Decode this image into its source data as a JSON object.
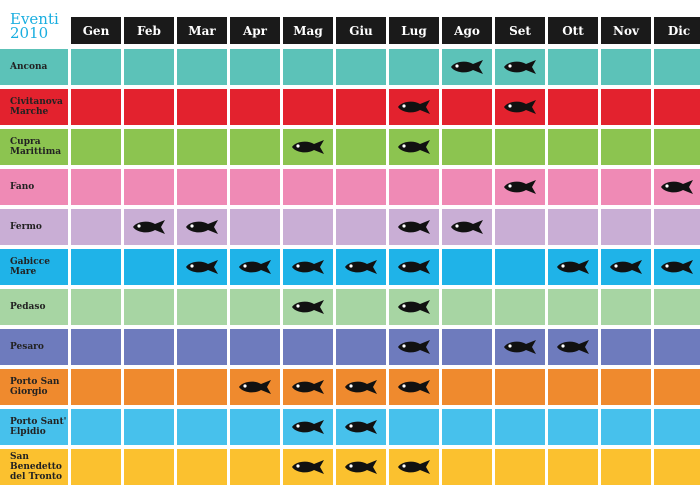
{
  "title_lines": [
    "Eventi",
    "2010"
  ],
  "months": [
    "Gen",
    "Feb",
    "Mar",
    "Apr",
    "Mag",
    "Giu",
    "Lug",
    "Ago",
    "Set",
    "Ott",
    "Nov",
    "Dic"
  ],
  "colors": {
    "title": "#19aee0",
    "header": "#1a1a1a",
    "fish": "#111111"
  },
  "rows": [
    {
      "name": "Ancona",
      "color": "#5cc2b8",
      "events": [
        8,
        9
      ]
    },
    {
      "name": "Civitanova Marche",
      "color": "#e3222e",
      "events": [
        7,
        9
      ]
    },
    {
      "name": "Cupra Marittima",
      "color": "#8cc450",
      "events": [
        5,
        7
      ]
    },
    {
      "name": "Fano",
      "color": "#ef8ab5",
      "events": [
        9,
        12
      ]
    },
    {
      "name": "Fermo",
      "color": "#c9aed5",
      "events": [
        2,
        3,
        7,
        8
      ]
    },
    {
      "name": "Gabicce Mare",
      "color": "#1fb3e8",
      "events": [
        3,
        4,
        5,
        6,
        7,
        10,
        11,
        12
      ]
    },
    {
      "name": "Pedaso",
      "color": "#a7d5a3",
      "events": [
        5,
        7
      ]
    },
    {
      "name": "Pesaro",
      "color": "#6e7bbd",
      "events": [
        7,
        9,
        10
      ]
    },
    {
      "name": "Porto San Giorgio",
      "color": "#ef8a2e",
      "events": [
        4,
        5,
        6,
        7
      ]
    },
    {
      "name": "Porto Sant' Elpidio",
      "color": "#47c1ec",
      "events": [
        5,
        6
      ]
    },
    {
      "name": "San Benedetto del Tronto",
      "color": "#fbc12f",
      "events": [
        5,
        6,
        7
      ]
    }
  ]
}
